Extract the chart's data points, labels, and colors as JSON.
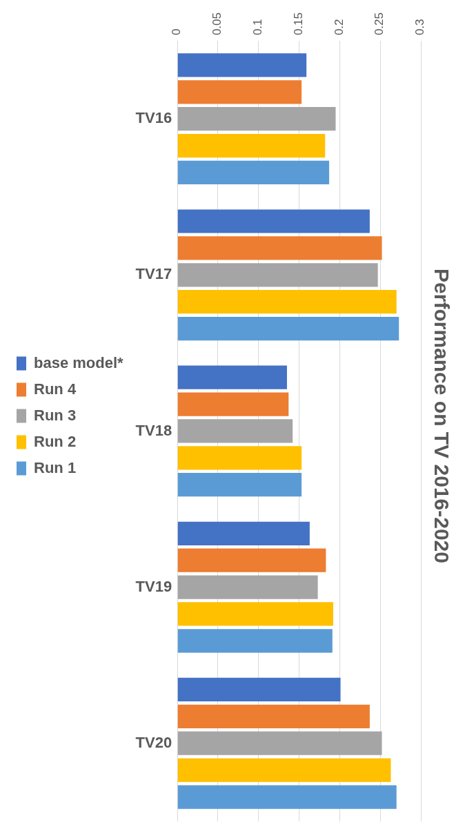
{
  "chart_data": {
    "type": "bar",
    "title": "Performance on TV 2016-2020",
    "orientation": "horizontal",
    "categories": [
      "TV16",
      "TV17",
      "TV18",
      "TV19",
      "TV20"
    ],
    "series": [
      {
        "name": "base model*",
        "color": "#4472c4",
        "values": [
          0.159,
          0.237,
          0.135,
          0.163,
          0.201
        ]
      },
      {
        "name": "Run 4",
        "color": "#ed7d31",
        "values": [
          0.153,
          0.252,
          0.137,
          0.183,
          0.237
        ]
      },
      {
        "name": "Run 3",
        "color": "#a5a5a5",
        "values": [
          0.195,
          0.247,
          0.142,
          0.173,
          0.252
        ]
      },
      {
        "name": "Run 2",
        "color": "#ffc000",
        "values": [
          0.182,
          0.27,
          0.153,
          0.192,
          0.263
        ]
      },
      {
        "name": "Run 1",
        "color": "#5b9bd5",
        "values": [
          0.187,
          0.273,
          0.153,
          0.191,
          0.27
        ]
      }
    ],
    "xlim": [
      0,
      0.3
    ],
    "xticks": [
      0,
      0.05,
      0.1,
      0.15,
      0.2,
      0.25,
      0.3
    ],
    "grid": "x",
    "legend": "left"
  }
}
